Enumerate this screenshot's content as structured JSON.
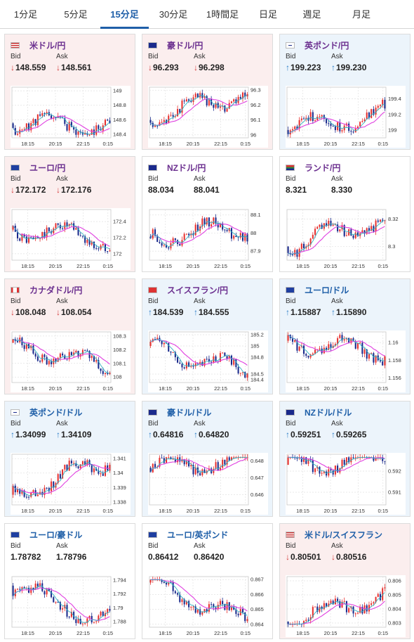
{
  "tabs": [
    {
      "label": "1分足",
      "active": false
    },
    {
      "label": "5分足",
      "active": false
    },
    {
      "label": "15分足",
      "active": true
    },
    {
      "label": "30分足",
      "active": false
    },
    {
      "label": "1時間足",
      "active": false
    },
    {
      "label": "日足",
      "active": false
    },
    {
      "label": "週足",
      "active": false
    },
    {
      "label": "月足",
      "active": false
    }
  ],
  "colors": {
    "card_down_bg": "#fbeeee",
    "card_up_bg": "#ecf4fb",
    "candle_up": "#e8312f",
    "candle_down": "#1a2a8c",
    "ma_line": "#e040e0",
    "ma_line2": "#30b0c0",
    "arrow_down": "#d43a3a",
    "arrow_up": "#2a7cc7",
    "pair_name_jpy": "#6b2f8f",
    "pair_name_cross": "#1f5fa8"
  },
  "labels": {
    "bid": "Bid",
    "ask": "Ask"
  },
  "x_ticks": [
    "18:15",
    "20:15",
    "22:15",
    "0:15"
  ],
  "pairs": [
    {
      "name": "米ドル/円",
      "flag": "us",
      "bid": "148.559",
      "ask": "148.561",
      "dir": "down",
      "color": "purple",
      "chart_data": {
        "type": "candlestick",
        "y_ticks": [
          "149",
          "148.8",
          "148.6",
          "148.4"
        ],
        "ylim": [
          148.35,
          149.05
        ],
        "start": 148.55,
        "end": 148.52,
        "seed": 11
      }
    },
    {
      "name": "豪ドル/円",
      "flag": "au",
      "bid": "96.293",
      "ask": "96.298",
      "dir": "down",
      "color": "purple",
      "chart_data": {
        "type": "candlestick",
        "y_ticks": [
          "96.3",
          "96.2",
          "96.1",
          "96"
        ],
        "ylim": [
          95.98,
          96.32
        ],
        "start": 96.1,
        "end": 96.29,
        "seed": 23
      }
    },
    {
      "name": "英ポンド/円",
      "flag": "gb",
      "bid": "199.223",
      "ask": "199.230",
      "dir": "up",
      "color": "purple",
      "chart_data": {
        "type": "candlestick",
        "y_ticks": [
          "199.4",
          "199.2",
          "199"
        ],
        "ylim": [
          198.9,
          199.55
        ],
        "start": 199.0,
        "end": 199.22,
        "seed": 37
      }
    },
    {
      "name": "ユーロ/円",
      "flag": "eu",
      "bid": "172.172",
      "ask": "172.176",
      "dir": "down",
      "color": "purple",
      "chart_data": {
        "type": "candlestick",
        "y_ticks": [
          "172.4",
          "172.2",
          "172"
        ],
        "ylim": [
          171.92,
          172.55
        ],
        "start": 172.3,
        "end": 172.17,
        "seed": 41
      }
    },
    {
      "name": "NZドル/円",
      "flag": "nz",
      "bid": "88.034",
      "ask": "88.041",
      "dir": "flat",
      "color": "purple",
      "chart_data": {
        "type": "candlestick",
        "y_ticks": [
          "88.1",
          "88",
          "87.9"
        ],
        "ylim": [
          87.85,
          88.13
        ],
        "start": 87.98,
        "end": 88.03,
        "seed": 53
      }
    },
    {
      "name": "ランド/円",
      "flag": "za",
      "bid": "8.321",
      "ask": "8.330",
      "dir": "flat",
      "color": "purple",
      "chart_data": {
        "type": "candlestick",
        "y_ticks": [
          "8.32",
          "8.3"
        ],
        "ylim": [
          8.29,
          8.327
        ],
        "start": 8.3,
        "end": 8.32,
        "seed": 61
      }
    },
    {
      "name": "カナダドル/円",
      "flag": "ca",
      "bid": "108.048",
      "ask": "108.054",
      "dir": "down",
      "color": "purple",
      "chart_data": {
        "type": "candlestick",
        "y_ticks": [
          "108.3",
          "108.2",
          "108.1",
          "108"
        ],
        "ylim": [
          107.96,
          108.33
        ],
        "start": 108.25,
        "end": 108.05,
        "seed": 71
      }
    },
    {
      "name": "スイスフラン/円",
      "flag": "ch",
      "bid": "184.539",
      "ask": "184.555",
      "dir": "up",
      "color": "purple",
      "chart_data": {
        "type": "candlestick",
        "y_ticks": [
          "185.2",
          "185",
          "184.8",
          "184.5",
          "184.4"
        ],
        "ylim": [
          184.35,
          185.25
        ],
        "start": 185.0,
        "end": 184.5,
        "seed": 83
      }
    },
    {
      "name": "ユーロ/ドル",
      "flag": "eu-us",
      "bid": "1.15887",
      "ask": "1.15890",
      "dir": "up",
      "color": "blue",
      "chart_data": {
        "type": "candlestick",
        "y_ticks": [
          "1.16",
          "1.158",
          "1.156"
        ],
        "ylim": [
          1.1555,
          1.1612
        ],
        "start": 1.1602,
        "end": 1.1589,
        "seed": 97
      }
    },
    {
      "name": "英ポンド/ドル",
      "flag": "gb-us",
      "bid": "1.34099",
      "ask": "1.34109",
      "dir": "up",
      "color": "blue",
      "chart_data": {
        "type": "candlestick",
        "y_ticks": [
          "1.341",
          "1.34",
          "1.339",
          "1.338"
        ],
        "ylim": [
          1.3378,
          1.3413
        ],
        "start": 1.3385,
        "end": 1.3409,
        "seed": 103
      }
    },
    {
      "name": "豪ドル/ドル",
      "flag": "au-us",
      "bid": "0.64816",
      "ask": "0.64820",
      "dir": "up",
      "color": "blue",
      "chart_data": {
        "type": "candlestick",
        "y_ticks": [
          "0.648",
          "0.647",
          "0.646"
        ],
        "ylim": [
          0.6454,
          0.6484
        ],
        "start": 0.6476,
        "end": 0.6481,
        "seed": 113
      }
    },
    {
      "name": "NZドル/ドル",
      "flag": "nz-us",
      "bid": "0.59251",
      "ask": "0.59265",
      "dir": "up",
      "color": "blue",
      "chart_data": {
        "type": "candlestick",
        "y_ticks": [
          "0.592",
          "0.591"
        ],
        "ylim": [
          0.5904,
          0.5928
        ],
        "start": 0.5923,
        "end": 0.5925,
        "seed": 127
      }
    },
    {
      "name": "ユーロ/豪ドル",
      "flag": "eu-au",
      "bid": "1.78782",
      "ask": "1.78796",
      "dir": "flat",
      "color": "blue",
      "chart_data": {
        "type": "candlestick",
        "y_ticks": [
          "1.794",
          "1.792",
          "1.79",
          "1.788"
        ],
        "ylim": [
          1.7872,
          1.7945
        ],
        "start": 1.7932,
        "end": 1.7878,
        "seed": 131
      }
    },
    {
      "name": "ユーロ/英ポンド",
      "flag": "eu-gb",
      "bid": "0.86412",
      "ask": "0.86420",
      "dir": "flat",
      "color": "blue",
      "chart_data": {
        "type": "candlestick",
        "y_ticks": [
          "0.867",
          "0.866",
          "0.865",
          "0.864"
        ],
        "ylim": [
          0.8638,
          0.8672
        ],
        "start": 0.8668,
        "end": 0.8641,
        "seed": 139
      }
    },
    {
      "name": "米ドル/スイスフラン",
      "flag": "us-ch",
      "bid": "0.80501",
      "ask": "0.80516",
      "dir": "down",
      "color": "blue",
      "chart_data": {
        "type": "candlestick",
        "y_ticks": [
          "0.806",
          "0.805",
          "0.804",
          "0.803"
        ],
        "ylim": [
          0.8027,
          0.8063
        ],
        "start": 0.8031,
        "end": 0.805,
        "seed": 149
      }
    }
  ]
}
